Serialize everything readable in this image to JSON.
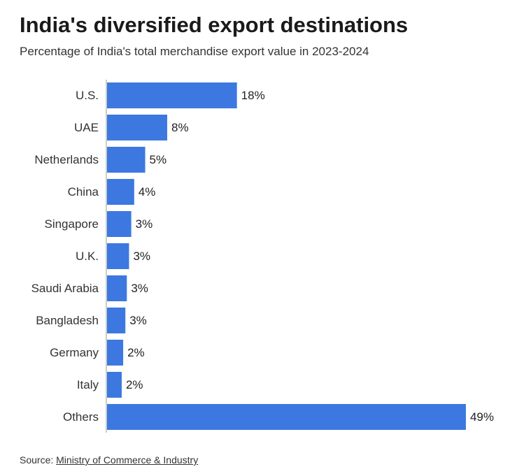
{
  "title": "India's diversified export destinations",
  "subtitle": "Percentage of India's total merchandise export value in 2023-2024",
  "source": {
    "prefix": "Source: ",
    "link_text": "Ministry of Commerce & Industry"
  },
  "colors": {
    "bar": "#3c78e0",
    "axis": "#999999"
  },
  "chart_data": {
    "type": "bar",
    "orientation": "horizontal",
    "title": "India's diversified export destinations",
    "subtitle": "Percentage of India's total merchandise export value in 2023-2024",
    "categories": [
      "U.S.",
      "UAE",
      "Netherlands",
      "China",
      "Singapore",
      "U.K.",
      "Saudi Arabia",
      "Bangladesh",
      "Germany",
      "Italy",
      "Others"
    ],
    "values": [
      18,
      8,
      5,
      4,
      3,
      3,
      3,
      3,
      2,
      2,
      49
    ],
    "value_labels": [
      "18%",
      "8%",
      "5%",
      "4%",
      "3%",
      "3%",
      "3%",
      "3%",
      "2%",
      "2%",
      "49%"
    ],
    "bar_values_precise": [
      17.7,
      8.2,
      5.2,
      3.7,
      3.3,
      3.0,
      2.7,
      2.5,
      2.2,
      2.0,
      48.9
    ],
    "xlabel": "",
    "ylabel": "",
    "xlim": [
      0,
      49
    ],
    "unit": "%",
    "grid": false
  }
}
